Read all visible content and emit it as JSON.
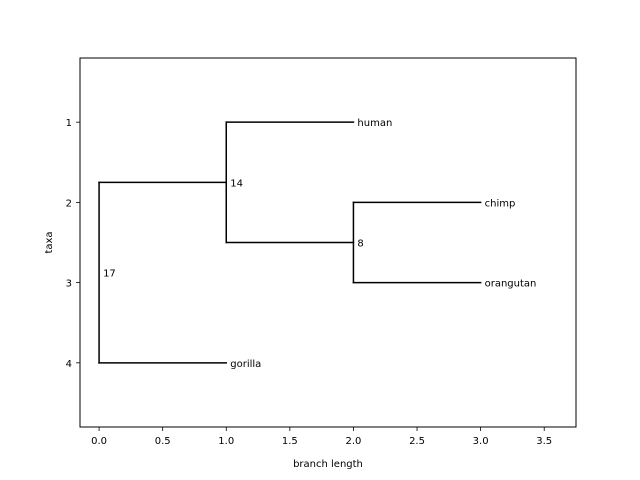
{
  "chart_data": {
    "type": "tree",
    "xlabel": "branch length",
    "ylabel": "taxa",
    "xlim": [
      -0.15,
      3.75
    ],
    "ylim": [
      4.8,
      0.2
    ],
    "xticks": [
      0.0,
      0.5,
      1.0,
      1.5,
      2.0,
      2.5,
      3.0,
      3.5
    ],
    "xtick_labels": [
      "0.0",
      "0.5",
      "1.0",
      "1.5",
      "2.0",
      "2.5",
      "3.0",
      "3.5"
    ],
    "yticks": [
      1,
      2,
      3,
      4
    ],
    "ytick_labels": [
      "1",
      "2",
      "3",
      "4"
    ],
    "line_color": "#000000",
    "leaves": [
      {
        "name": "human",
        "x": 2.0,
        "y": 1
      },
      {
        "name": "chimp",
        "x": 3.0,
        "y": 2
      },
      {
        "name": "orangutan",
        "x": 3.0,
        "y": 3
      },
      {
        "name": "gorilla",
        "x": 1.0,
        "y": 4
      }
    ],
    "internal_nodes": [
      {
        "label": "17",
        "x": 0.0,
        "y_top": 1.75,
        "y_bottom": 4.0,
        "label_y": 2.875
      },
      {
        "label": "14",
        "x": 1.0,
        "y_top": 1.0,
        "y_bottom": 2.5,
        "label_y": 1.75
      },
      {
        "label": "8",
        "x": 2.0,
        "y_top": 2.0,
        "y_bottom": 3.0,
        "label_y": 2.5
      }
    ],
    "branches": [
      {
        "x1": 0.0,
        "x2": 1.0,
        "y": 1.75
      },
      {
        "x1": 0.0,
        "x2": 1.0,
        "y": 4.0
      },
      {
        "x1": 1.0,
        "x2": 2.0,
        "y": 1.0
      },
      {
        "x1": 1.0,
        "x2": 2.0,
        "y": 2.5
      },
      {
        "x1": 2.0,
        "x2": 3.0,
        "y": 2.0
      },
      {
        "x1": 2.0,
        "x2": 3.0,
        "y": 3.0
      }
    ]
  }
}
